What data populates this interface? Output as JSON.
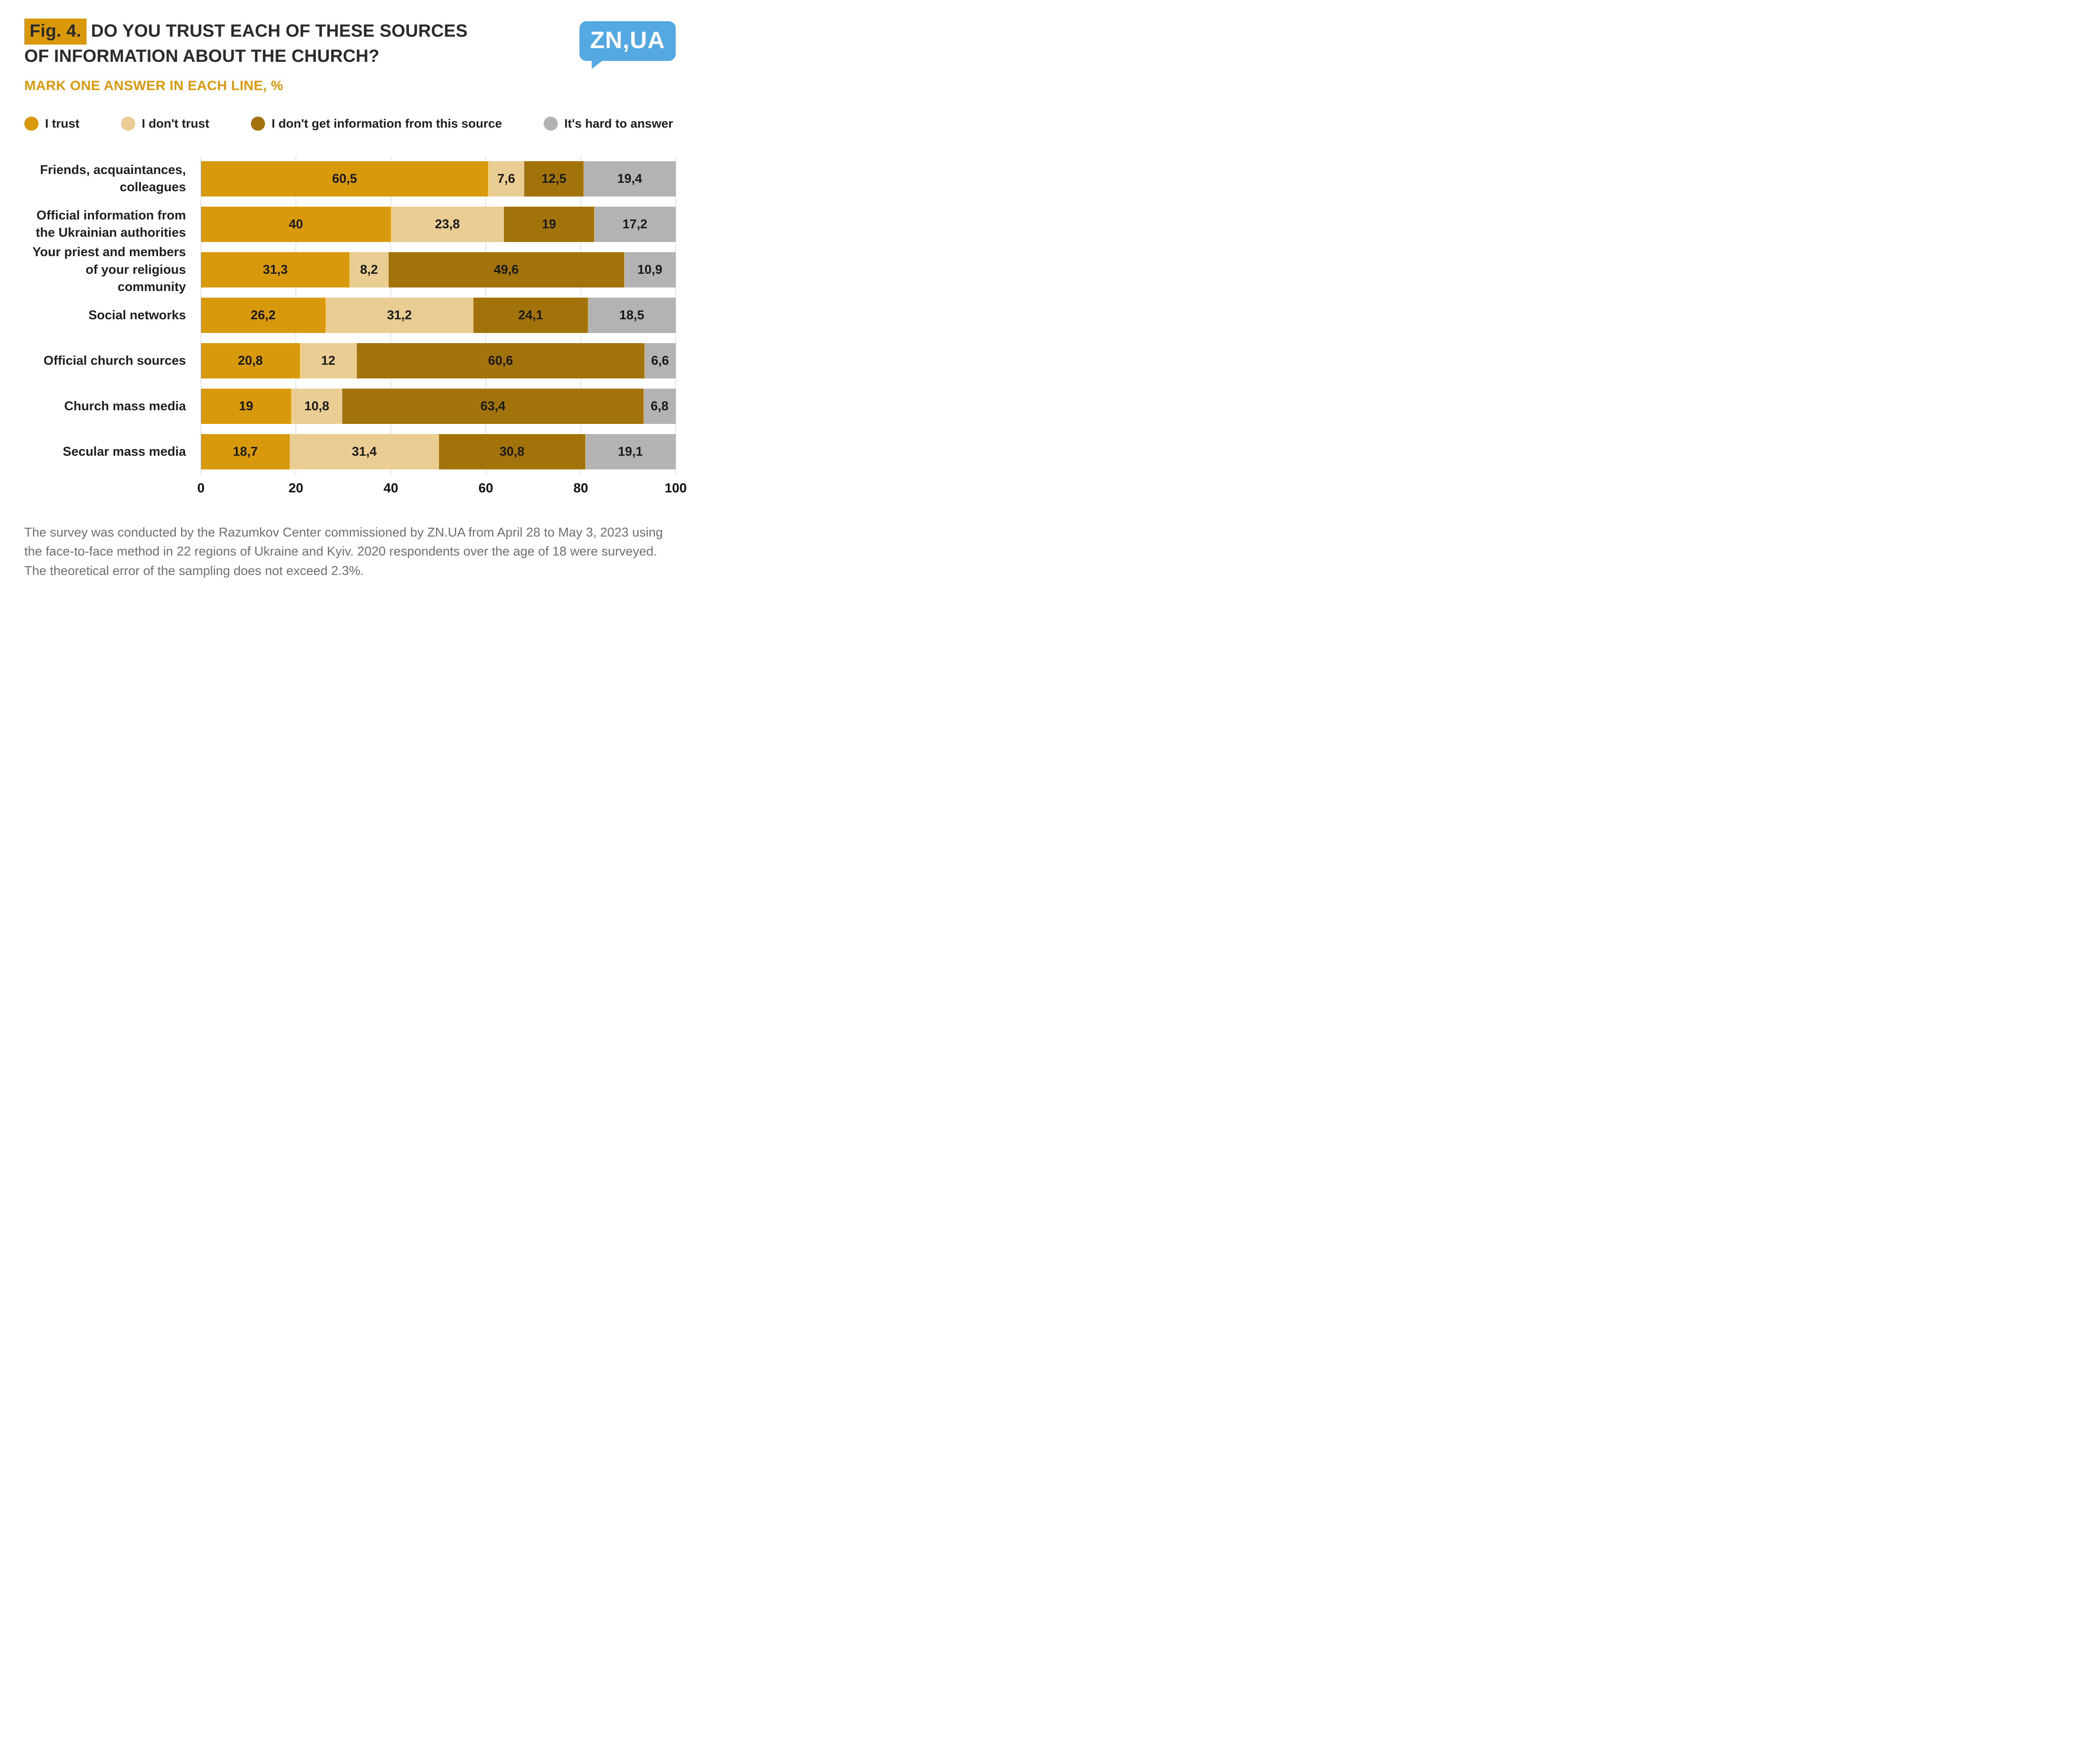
{
  "header": {
    "fig_label": "Fig. 4.",
    "title_line1": "DO YOU TRUST EACH OF THESE SOURCES",
    "title_line2": "OF INFORMATION ABOUT THE CHURCH?",
    "subtitle": "MARK ONE ANSWER IN EACH LINE, %",
    "logo_text": "ZN,UA"
  },
  "colors": {
    "trust": "#D9990D",
    "dont_trust": "#EACD92",
    "no_info": "#A3730B",
    "hard_to_answer": "#B3B3B4",
    "accent_gold": "#D9990B",
    "logo_blue": "#55A9E3",
    "gridline": "#E4E4E4"
  },
  "chart_data": {
    "type": "bar",
    "orientation": "horizontal",
    "stacked": true,
    "title": "Do you trust each of these sources of information about the church?",
    "xlabel": "",
    "ylabel": "",
    "xlim": [
      0,
      100
    ],
    "grid": true,
    "legend_position": "top",
    "x_ticks": [
      "0",
      "20",
      "40",
      "60",
      "80",
      "100"
    ],
    "categories": [
      "Friends, acquaintances, colleagues",
      "Official information from the Ukrainian authorities",
      "Your priest and members of your religious community",
      "Social networks",
      "Official church sources",
      "Church mass media",
      "Secular mass media"
    ],
    "series": [
      {
        "name": "I trust",
        "color": "#D9990D",
        "values": [
          60.5,
          40,
          31.3,
          26.2,
          20.8,
          19,
          18.7
        ],
        "labels": [
          "60,5",
          "40",
          "31,3",
          "26,2",
          "20,8",
          "19",
          "18,7"
        ]
      },
      {
        "name": "I don't trust",
        "color": "#EACD92",
        "values": [
          7.6,
          23.8,
          8.2,
          31.2,
          12,
          10.8,
          31.4
        ],
        "labels": [
          "7,6",
          "23,8",
          "8,2",
          "31,2",
          "12",
          "10,8",
          "31,4"
        ]
      },
      {
        "name": "I don't get information from this source",
        "color": "#A3730B",
        "values": [
          12.5,
          19,
          49.6,
          24.1,
          60.6,
          63.4,
          30.8
        ],
        "labels": [
          "12,5",
          "19",
          "49,6",
          "24,1",
          "60,6",
          "63,4",
          "30,8"
        ]
      },
      {
        "name": "It's hard to answer",
        "color": "#B3B3B4",
        "values": [
          19.4,
          17.2,
          10.9,
          18.5,
          6.6,
          6.8,
          19.1
        ],
        "labels": [
          "19,4",
          "17,2",
          "10,9",
          "18,5",
          "6,6",
          "6,8",
          "19,1"
        ]
      }
    ]
  },
  "footer": {
    "text": "The survey was conducted by the Razumkov Center commissioned by ZN.UA from April 28 to May 3, 2023 using the face-to-face method in 22 regions of Ukraine and Kyiv. 2020 respondents over the age of 18 were surveyed. The theoretical error of the sampling does not exceed 2.3%."
  }
}
